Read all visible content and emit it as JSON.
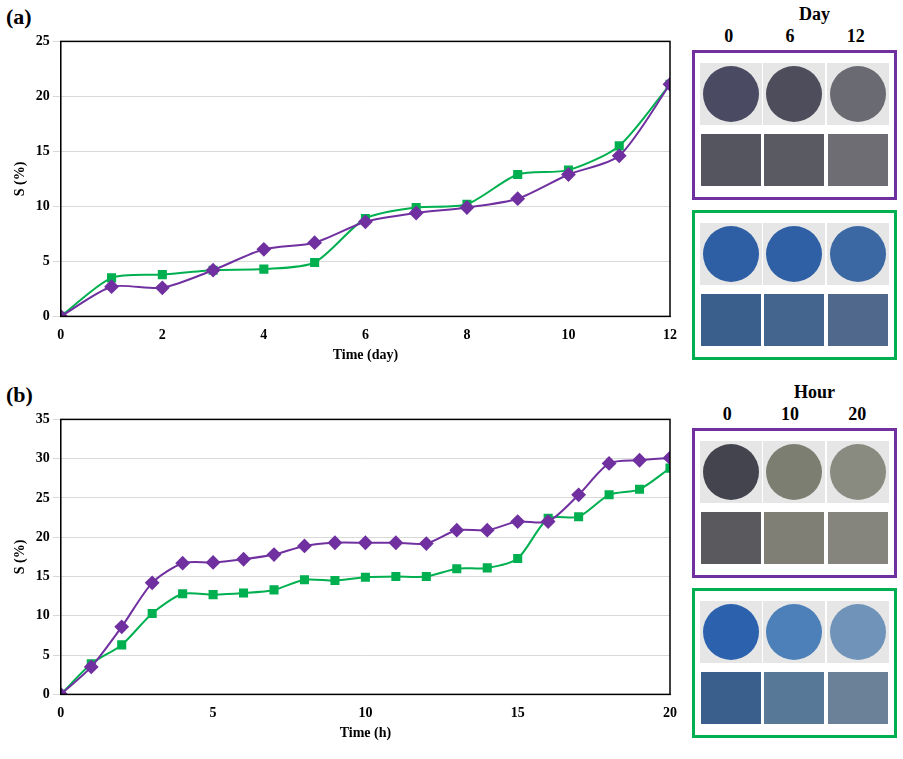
{
  "chart_data": [
    {
      "panel": "(a)",
      "type": "line",
      "x_label": "Time (day)",
      "y_label": "S (%)",
      "x": [
        0,
        1,
        2,
        3,
        4,
        5,
        6,
        7,
        8,
        9,
        10,
        11,
        12
      ],
      "series": [
        {
          "color": "#7030a0",
          "marker": "diamond",
          "line_style": "solid",
          "values": [
            0,
            2.7,
            2.6,
            4.2,
            6.1,
            6.7,
            8.6,
            9.4,
            9.9,
            10.7,
            12.9,
            14.6,
            21.1
          ]
        },
        {
          "color": "#00b050",
          "marker": "square",
          "line_style": "solid",
          "values": [
            0,
            3.5,
            3.8,
            4.2,
            4.3,
            4.9,
            8.9,
            9.9,
            10.2,
            12.9,
            13.3,
            15.5,
            21.1
          ]
        }
      ],
      "xlim": [
        0,
        12
      ],
      "xticks": [
        0,
        2,
        4,
        6,
        8,
        10,
        12
      ],
      "ylim": [
        0,
        25
      ],
      "yticks": [
        0,
        5,
        10,
        15,
        20,
        25
      ],
      "grid": "y"
    },
    {
      "panel": "(b)",
      "type": "line",
      "x_label": "Time (h)",
      "y_label": "S (%)",
      "x": [
        0,
        1,
        2,
        3,
        4,
        5,
        6,
        7,
        8,
        9,
        10,
        11,
        12,
        13,
        14,
        15,
        16,
        17,
        18,
        19,
        20
      ],
      "series": [
        {
          "color": "#7030a0",
          "marker": "diamond",
          "line_style": "solid",
          "values": [
            0,
            3.5,
            8.6,
            14.2,
            16.7,
            16.8,
            17.2,
            17.8,
            18.9,
            19.3,
            19.3,
            19.3,
            19.2,
            20.9,
            20.9,
            22.0,
            22.0,
            25.4,
            29.4,
            29.8,
            30.1
          ]
        },
        {
          "color": "#00b050",
          "marker": "square",
          "line_style": "solid",
          "values": [
            0,
            3.9,
            6.3,
            10.3,
            12.8,
            12.7,
            12.9,
            13.3,
            14.6,
            14.5,
            14.9,
            15.0,
            15.0,
            16.0,
            16.1,
            17.3,
            22.4,
            22.6,
            25.4,
            26.1,
            28.8
          ]
        }
      ],
      "xlim": [
        0,
        20
      ],
      "xticks": [
        0,
        5,
        10,
        15,
        20
      ],
      "ylim": [
        0,
        35
      ],
      "yticks": [
        0,
        5,
        10,
        15,
        20,
        25,
        30,
        35
      ],
      "grid": "y"
    }
  ],
  "swatches": [
    {
      "title": "Day",
      "labels": [
        "0",
        "6",
        "12"
      ],
      "groups": [
        {
          "color": "#7030a0",
          "discs": [
            "#4a4a63",
            "#4d4d5c",
            "#6a6a72"
          ],
          "squares": [
            "#55555f",
            "#5a5a62",
            "#6d6d73"
          ]
        },
        {
          "color": "#00b050",
          "discs": [
            "#2e5ea3",
            "#2f60a5",
            "#3b68a3"
          ],
          "squares": [
            "#3b5f8c",
            "#44658e",
            "#50688c"
          ]
        }
      ]
    },
    {
      "title": "Hour",
      "labels": [
        "0",
        "10",
        "20"
      ],
      "groups": [
        {
          "color": "#7030a0",
          "discs": [
            "#44444f",
            "#7d7e72",
            "#8a8b80"
          ],
          "squares": [
            "#5a5a5e",
            "#7f7f76",
            "#85857d"
          ]
        },
        {
          "color": "#00b050",
          "discs": [
            "#2c62ad",
            "#4d80b8",
            "#7094b9"
          ],
          "squares": [
            "#3b5f8c",
            "#587898",
            "#6b8197"
          ]
        }
      ]
    }
  ]
}
